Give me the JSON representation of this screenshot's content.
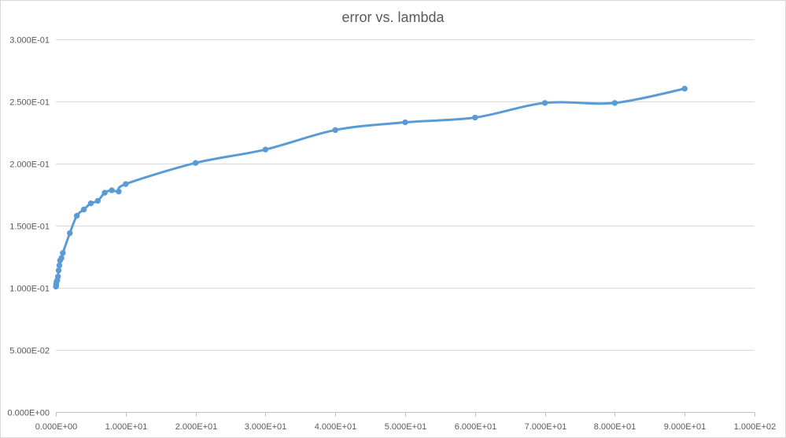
{
  "chart_data": {
    "type": "line",
    "title": "error vs. lambda",
    "xlabel": "",
    "ylabel": "",
    "xlim": [
      0,
      100
    ],
    "ylim": [
      0,
      0.3
    ],
    "grid": "horizontal",
    "legend": "none",
    "x_ticks": [
      0,
      10,
      20,
      30,
      40,
      50,
      60,
      70,
      80,
      90,
      100
    ],
    "x_tick_labels": [
      "0.000E+00",
      "1.000E+01",
      "2.000E+01",
      "3.000E+01",
      "4.000E+01",
      "5.000E+01",
      "6.000E+01",
      "7.000E+01",
      "8.000E+01",
      "9.000E+01",
      "1.000E+02"
    ],
    "y_ticks": [
      0,
      0.05,
      0.1,
      0.15,
      0.2,
      0.25,
      0.3
    ],
    "y_tick_labels": [
      "0.000E+00",
      "5.000E-02",
      "1.000E-01",
      "1.500E-01",
      "2.000E-01",
      "2.500E-01",
      "3.000E-01"
    ],
    "series": [
      {
        "color": "#5b9bd5",
        "x": [
          0.01,
          0.03,
          0.05,
          0.1,
          0.2,
          0.3,
          0.4,
          0.5,
          0.6,
          0.8,
          1.0,
          2.0,
          3.0,
          4.0,
          5.0,
          6.0,
          7.0,
          8.0,
          9.0,
          10,
          20,
          30,
          40,
          50,
          60,
          70,
          80,
          90
        ],
        "y": [
          0.101,
          0.1015,
          0.103,
          0.105,
          0.106,
          0.109,
          0.114,
          0.118,
          0.122,
          0.124,
          0.128,
          0.144,
          0.158,
          0.163,
          0.168,
          0.17,
          0.1765,
          0.1785,
          0.1775,
          0.1835,
          0.2005,
          0.2113,
          0.227,
          0.2332,
          0.237,
          0.2488,
          0.2488,
          0.2603
        ]
      }
    ]
  }
}
